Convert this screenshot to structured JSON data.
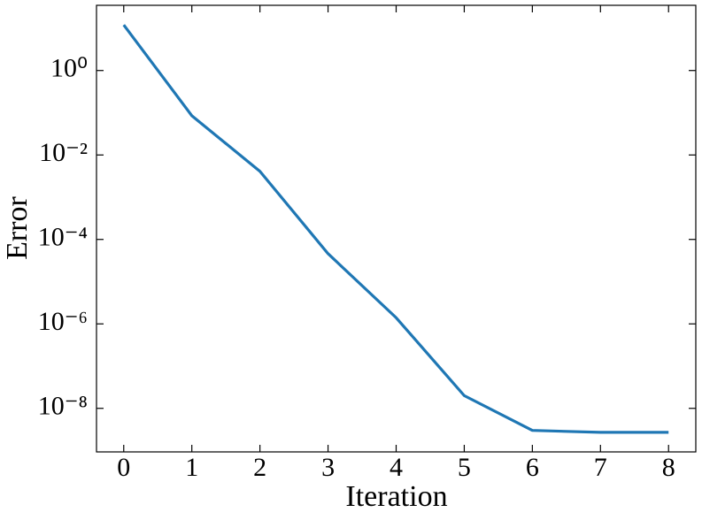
{
  "chart_data": {
    "type": "line",
    "xlabel": "Iteration",
    "ylabel": "Error",
    "x": [
      0,
      1,
      2,
      3,
      4,
      5,
      6,
      7,
      8
    ],
    "values": [
      12,
      0.085,
      0.0041,
      4.6e-05,
      1.4e-06,
      2e-08,
      3e-09,
      2.7e-09,
      2.7e-09
    ],
    "color": "#1f77b4",
    "xlim": [
      -0.4,
      8.4
    ],
    "xticks": [
      0,
      1,
      2,
      3,
      4,
      5,
      6,
      7,
      8
    ],
    "ylim": [
      9.3e-10,
      35
    ],
    "yscale": "log",
    "yticks": [
      {
        "value": 1,
        "label": "10⁰"
      },
      {
        "value": 0.01,
        "label": "10⁻²"
      },
      {
        "value": 0.0001,
        "label": "10⁻⁴"
      },
      {
        "value": 1e-06,
        "label": "10⁻⁶"
      },
      {
        "value": 1e-08,
        "label": "10⁻⁸"
      }
    ],
    "grid": false
  }
}
